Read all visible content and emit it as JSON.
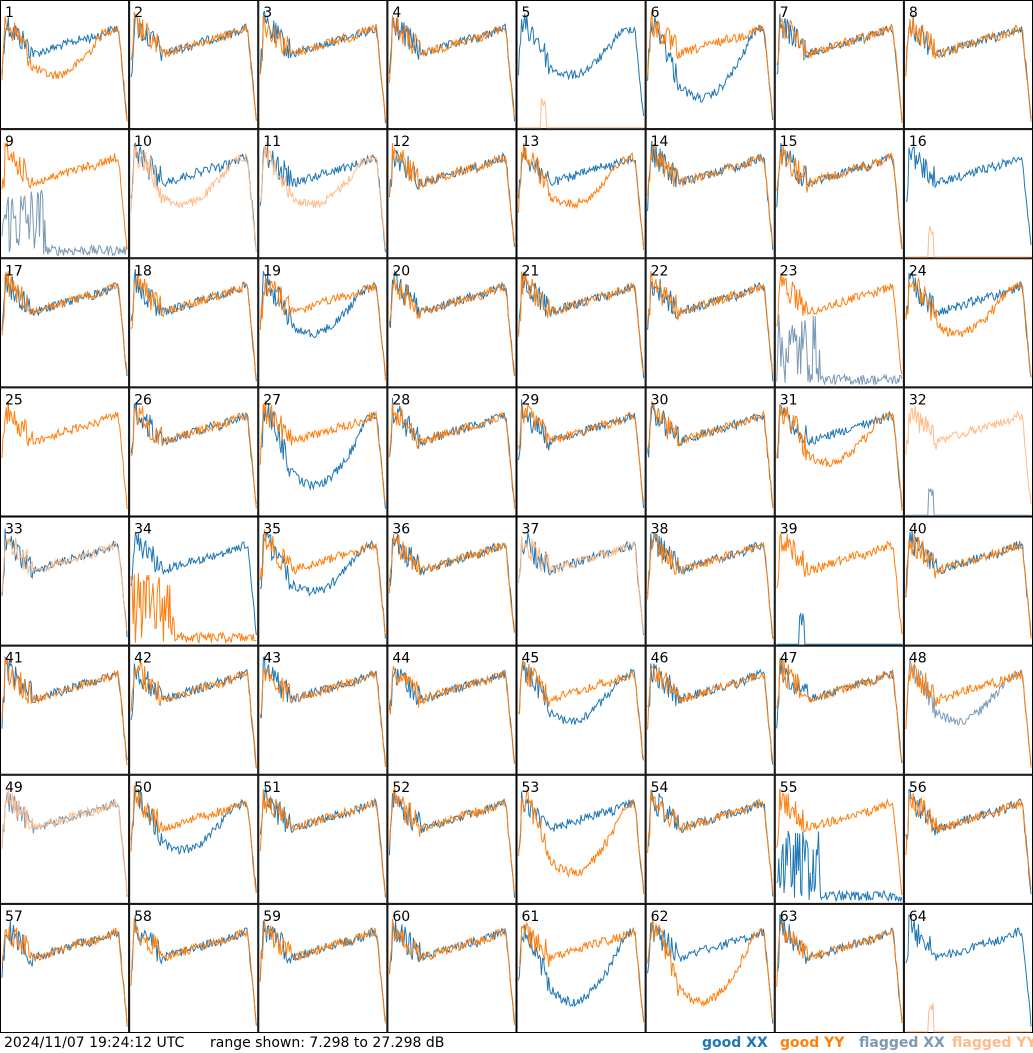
{
  "chart_data": {
    "type": "line",
    "panels": 64,
    "panel_labels": [
      "1",
      "2",
      "3",
      "4",
      "5",
      "6",
      "7",
      "8",
      "9",
      "10",
      "11",
      "12",
      "13",
      "14",
      "15",
      "16",
      "17",
      "18",
      "19",
      "20",
      "21",
      "22",
      "23",
      "24",
      "25",
      "26",
      "27",
      "28",
      "29",
      "30",
      "31",
      "32",
      "33",
      "34",
      "35",
      "36",
      "37",
      "38",
      "39",
      "40",
      "41",
      "42",
      "43",
      "44",
      "45",
      "46",
      "47",
      "48",
      "49",
      "50",
      "51",
      "52",
      "53",
      "54",
      "55",
      "56",
      "57",
      "58",
      "59",
      "60",
      "61",
      "62",
      "63",
      "64"
    ],
    "ylim": [
      7.298,
      27.298
    ],
    "y_units": "dB",
    "series": [
      {
        "name": "good XX",
        "color": "#1f77b4"
      },
      {
        "name": "good YY",
        "color": "#ff7f0e"
      },
      {
        "name": "flagged XX",
        "color": "#7a99b4"
      },
      {
        "name": "flagged YY",
        "color": "#ffbb88"
      }
    ],
    "panel_styles": {
      "1": {
        "xx": "good",
        "yy": "good",
        "yy_shape": "dip"
      },
      "5": {
        "xx": "good",
        "yy": "flagged",
        "yy_shape": "flat_spike",
        "xx_shape": "dip"
      },
      "6": {
        "xx": "good",
        "yy": "good",
        "xx_shape": "deep"
      },
      "9": {
        "xx": "flagged",
        "yy": "good",
        "xx_shape": "spiky_low"
      },
      "10": {
        "xx": "good",
        "yy": "flagged",
        "yy_shape": "dip"
      },
      "11": {
        "xx": "good",
        "yy": "flagged",
        "yy_shape": "dip"
      },
      "13": {
        "xx": "good",
        "yy": "good",
        "yy_shape": "dip"
      },
      "16": {
        "xx": "good",
        "yy": "flagged",
        "yy_shape": "flat_spike"
      },
      "19": {
        "xx": "good",
        "yy": "good",
        "xx_shape": "dip"
      },
      "23": {
        "xx": "flagged",
        "yy": "good",
        "xx_shape": "spiky_low"
      },
      "24": {
        "xx": "good",
        "yy": "good",
        "yy_shape": "dip"
      },
      "25": {
        "xx": "none",
        "yy": "good"
      },
      "27": {
        "xx": "good",
        "yy": "good",
        "xx_shape": "deep"
      },
      "31": {
        "xx": "good",
        "yy": "good",
        "yy_shape": "dip"
      },
      "32": {
        "xx": "flagged",
        "yy": "flagged",
        "xx_shape": "flat_spike"
      },
      "33": {
        "xx": "good",
        "yy": "flagged"
      },
      "34": {
        "xx": "good",
        "yy": "good",
        "yy_shape": "spiky_low"
      },
      "35": {
        "xx": "good",
        "yy": "good",
        "xx_shape": "dip"
      },
      "37": {
        "xx": "good",
        "yy": "flagged"
      },
      "39": {
        "xx": "good",
        "yy": "good",
        "xx_shape": "flat_spike"
      },
      "45": {
        "xx": "good",
        "yy": "good",
        "xx_shape": "dip"
      },
      "48": {
        "xx": "flagged",
        "yy": "good",
        "xx_shape": "dip"
      },
      "49": {
        "xx": "flagged",
        "yy": "flagged"
      },
      "50": {
        "xx": "good",
        "yy": "good",
        "xx_shape": "dip"
      },
      "53": {
        "xx": "good",
        "yy": "good",
        "yy_shape": "deep"
      },
      "55": {
        "xx": "good",
        "yy": "good",
        "xx_shape": "spiky_low"
      },
      "61": {
        "xx": "good",
        "yy": "good",
        "xx_shape": "deep"
      },
      "62": {
        "xx": "good",
        "yy": "good",
        "yy_shape": "deep"
      },
      "64": {
        "xx": "good",
        "yy": "flagged",
        "yy_shape": "flat_spike"
      }
    }
  },
  "footer": {
    "timestamp": "2024/11/07 19:24:12 UTC",
    "range_text": "range shown: 7.298 to 27.298 dB",
    "legend": {
      "good_xx": "good XX",
      "good_yy": "good YY",
      "flagged_xx": "flagged XX",
      "flagged_yy": "flagged YY"
    }
  }
}
